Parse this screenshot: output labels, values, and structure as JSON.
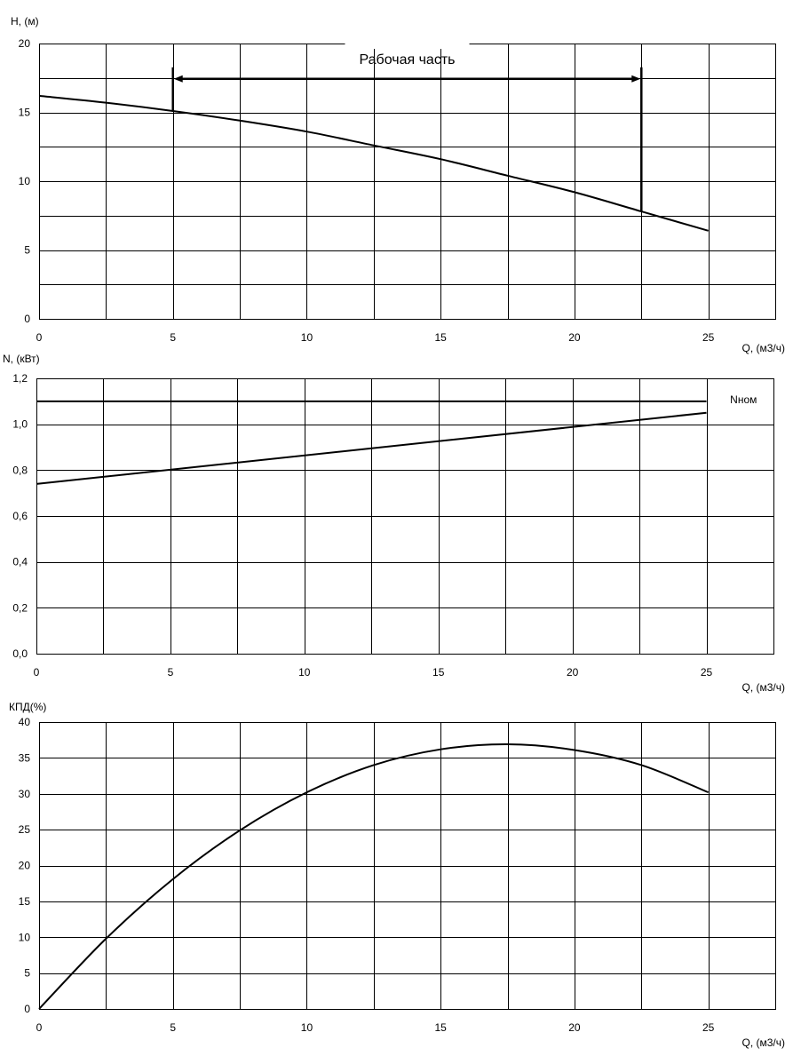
{
  "chart_data": [
    {
      "type": "line",
      "ylabel": "H, (м)",
      "xlabel": "Q, (м3/ч)",
      "xlim": [
        0,
        27.5
      ],
      "ylim": [
        0,
        20
      ],
      "x_ticks": [
        0,
        5,
        10,
        15,
        20,
        25
      ],
      "x_tick_labels": [
        "0",
        "5",
        "10",
        "15",
        "20",
        "25"
      ],
      "y_ticks": [
        0,
        5,
        10,
        15,
        20
      ],
      "y_tick_labels": [
        "0",
        "5",
        "10",
        "15",
        "20"
      ],
      "x_grid_step": 2.5,
      "y_grid_step": 2.5,
      "grid": true,
      "series": [
        {
          "x": [
            0,
            2.5,
            5,
            7.5,
            10,
            12.5,
            15,
            17.5,
            20,
            22.5,
            25
          ],
          "values": [
            16.2,
            15.7,
            15.1,
            14.4,
            13.6,
            12.6,
            11.6,
            10.4,
            9.2,
            7.8,
            6.4
          ]
        }
      ],
      "annotations": [
        {
          "text": "Рабочая часть",
          "x_from": 5,
          "x_to": 22.5,
          "y": 17.5,
          "type": "double-arrow"
        }
      ]
    },
    {
      "type": "line",
      "ylabel": "N, (кВт)",
      "xlabel": "Q, (м3/ч)",
      "xlim": [
        0,
        27.5
      ],
      "ylim": [
        0,
        1.2
      ],
      "x_ticks": [
        0,
        5,
        10,
        15,
        20,
        25
      ],
      "x_tick_labels": [
        "0",
        "5",
        "10",
        "15",
        "20",
        "25"
      ],
      "y_ticks": [
        0,
        0.2,
        0.4,
        0.6,
        0.8,
        1.0,
        1.2
      ],
      "y_tick_labels": [
        "0,0",
        "0,2",
        "0,4",
        "0,6",
        "0,8",
        "1,0",
        "1,2"
      ],
      "x_grid_step": 2.5,
      "y_grid_step": 0.2,
      "grid": true,
      "series": [
        {
          "x": [
            0,
            25
          ],
          "values": [
            0.74,
            1.05
          ]
        },
        {
          "name": "Nном",
          "x": [
            0,
            25
          ],
          "values": [
            1.1,
            1.1
          ]
        }
      ]
    },
    {
      "type": "line",
      "ylabel": "КПД(%)",
      "xlabel": "Q, (м3/ч)",
      "xlim": [
        0,
        27.5
      ],
      "ylim": [
        0,
        40
      ],
      "x_ticks": [
        0,
        5,
        10,
        15,
        20,
        25
      ],
      "x_tick_labels": [
        "0",
        "5",
        "10",
        "15",
        "20",
        "25"
      ],
      "y_ticks": [
        0,
        5,
        10,
        15,
        20,
        25,
        30,
        35,
        40
      ],
      "y_tick_labels": [
        "0",
        "5",
        "10",
        "15",
        "20",
        "25",
        "30",
        "35",
        "40"
      ],
      "x_grid_step": 2.5,
      "y_grid_step": 5,
      "grid": true,
      "series": [
        {
          "x": [
            0,
            2.5,
            5,
            7.5,
            10,
            12.5,
            15,
            17.5,
            20,
            22.5,
            25
          ],
          "values": [
            0,
            9.8,
            18.1,
            24.9,
            30.2,
            34.0,
            36.2,
            36.9,
            36.1,
            34.0,
            30.2
          ]
        }
      ]
    }
  ]
}
